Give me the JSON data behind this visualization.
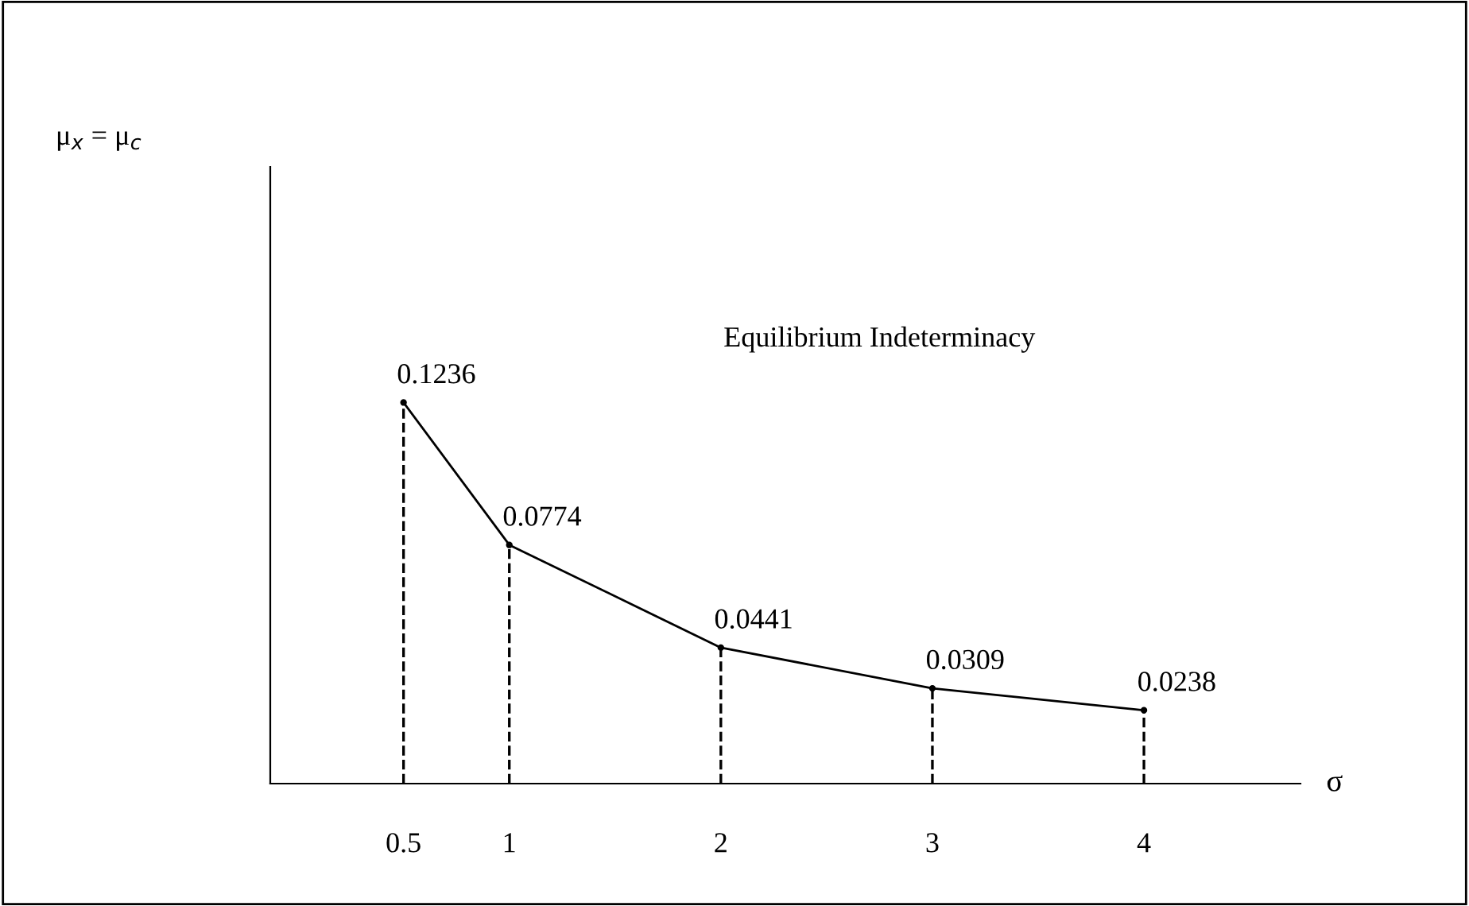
{
  "chart_data": {
    "type": "line",
    "x": [
      0.5,
      1,
      2,
      3,
      4
    ],
    "series": [
      {
        "type": "line",
        "color": "#000000",
        "values": [
          0.1236,
          0.0774,
          0.0441,
          0.0309,
          0.0238
        ],
        "value_labels": [
          "0.1236",
          "0.0774",
          "0.0441",
          "0.0309",
          "0.0238"
        ]
      },
      {
        "type": "lollipop",
        "color": "#000000",
        "line_style": "dashed",
        "values": [
          0.1236,
          0.0774,
          0.0441,
          0.0309,
          0.0238
        ]
      }
    ],
    "xlim": [
      -0.13,
      4.74
    ],
    "xticks": [
      0.5,
      1,
      2,
      3,
      4
    ],
    "ylim": [
      0,
      0.2
    ],
    "tick_labels": "x",
    "xlabel": "σ",
    "ylabel": "μ$_{x}$ = μ$_{c}$",
    "annotations": [
      "Equilibrium Indeterminacy"
    ],
    "grid": false,
    "legend": false,
    "marker": "none"
  }
}
